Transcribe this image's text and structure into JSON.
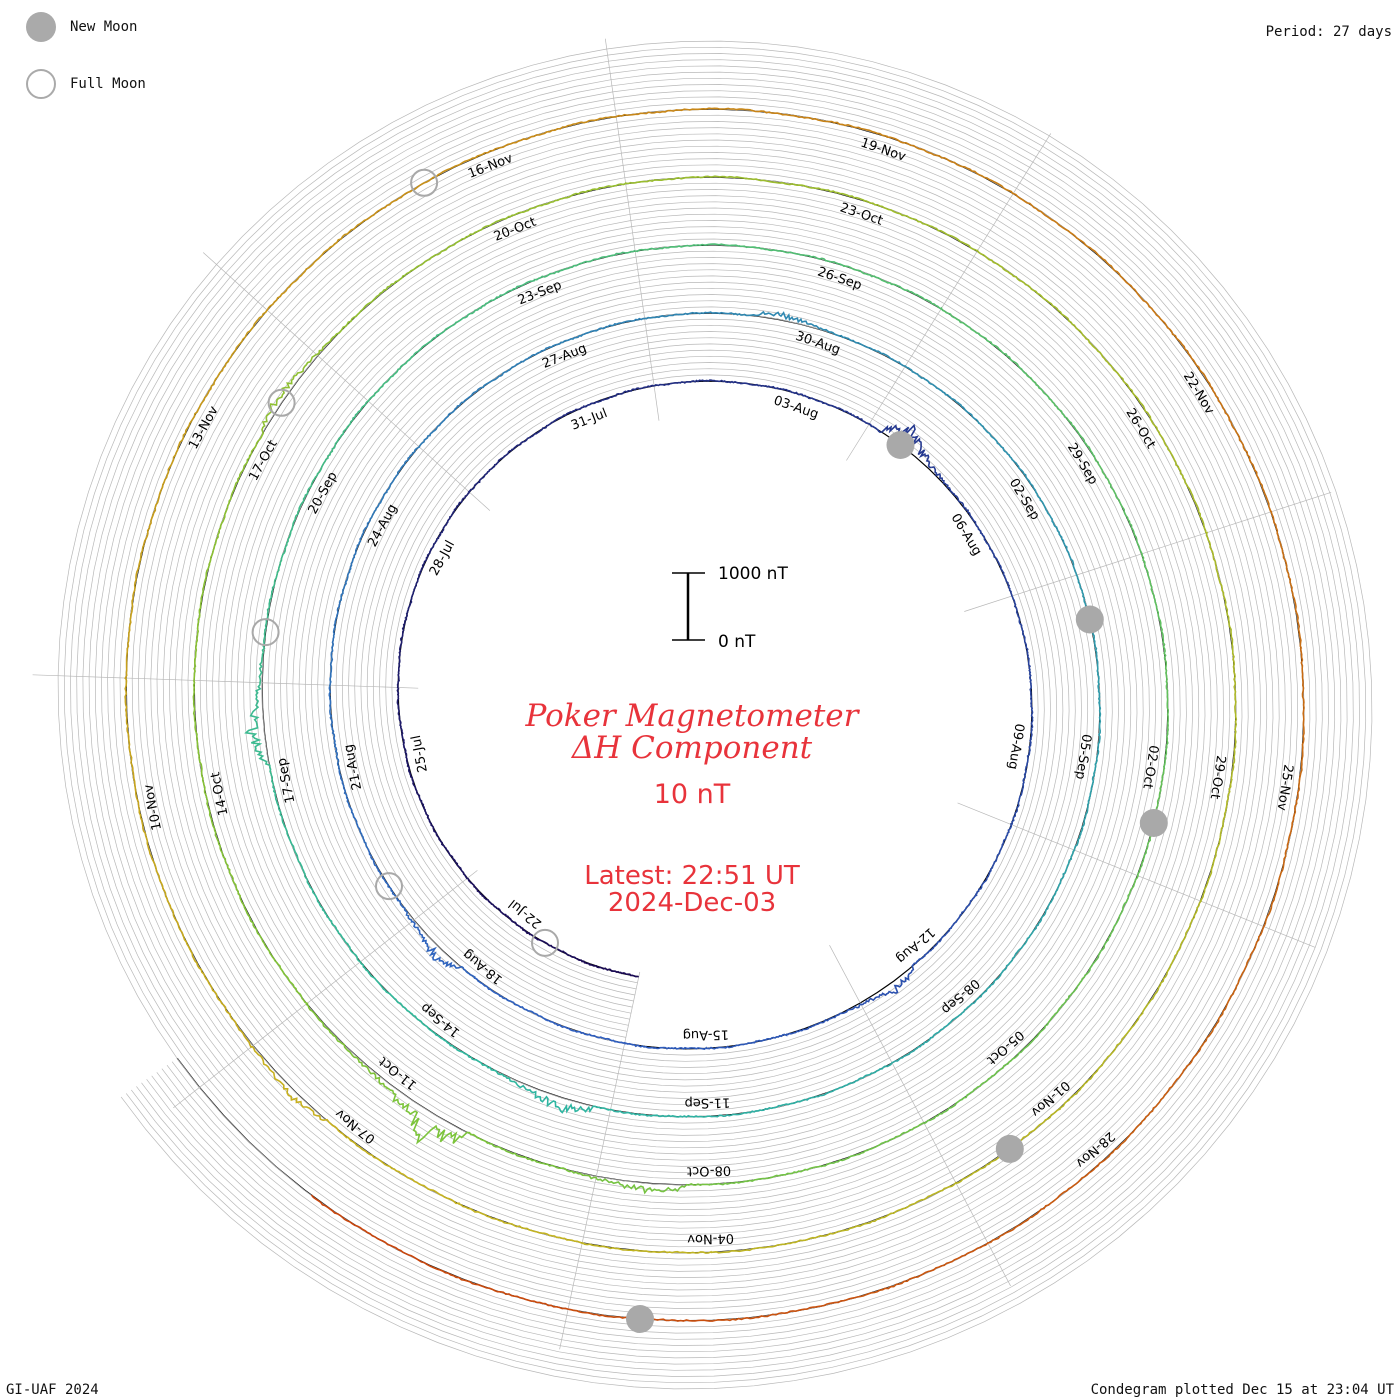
{
  "legend": {
    "new_moon": "New Moon",
    "full_moon": "Full Moon"
  },
  "period_label": "Period: 27 days",
  "footer_left": "GI-UAF 2024",
  "footer_right": "Condegram plotted Dec 15 at 23:04 UT",
  "scale_bar": {
    "top_label": "1000 nT",
    "bottom_label": "0 nT"
  },
  "title": {
    "line1": "Poker Magnetometer",
    "line2": "ΔH Component",
    "line3": "10 nT",
    "latest_line1": "Latest: 22:51 UT",
    "latest_line2": "2024-Dec-03"
  },
  "colors": {
    "title_red": "#e8333b",
    "grid": "#b8b8b8",
    "moon": "#a9a9a9",
    "trace_start": "#1a0a55",
    "trace_mid1": "#2f5fc0",
    "trace_mid2": "#2fb8a0",
    "trace_mid3": "#7cc43a",
    "trace_mid4": "#c7b21f",
    "trace_end": "#c9420c"
  },
  "chart_data": {
    "type": "line",
    "subtype": "spiral condegram",
    "period_days": 27,
    "start_date": "2024-07-20",
    "end_date": "2024-12-03",
    "day_labels": [
      "22-Jul",
      "25-Jul",
      "28-Jul",
      "31-Jul",
      "03-Aug",
      "06-Aug",
      "09-Aug",
      "12-Aug",
      "15-Aug",
      "18-Aug",
      "21-Aug",
      "24-Aug",
      "27-Aug",
      "30-Aug",
      "02-Sep",
      "05-Sep",
      "08-Sep",
      "11-Sep",
      "14-Sep",
      "17-Sep",
      "20-Sep",
      "23-Sep",
      "26-Sep",
      "29-Sep",
      "02-Oct",
      "05-Oct",
      "08-Oct",
      "11-Oct",
      "14-Oct",
      "17-Oct",
      "20-Oct",
      "23-Oct",
      "26-Oct",
      "29-Oct",
      "01-Nov",
      "04-Nov",
      "07-Nov",
      "10-Nov",
      "13-Nov",
      "16-Nov",
      "19-Nov",
      "22-Nov",
      "25-Nov",
      "28-Nov"
    ],
    "new_moons": [
      "2024-08-04",
      "2024-09-03",
      "2024-10-02",
      "2024-11-01",
      "2024-12-01"
    ],
    "full_moons": [
      "2024-07-21",
      "2024-08-19",
      "2024-09-18",
      "2024-10-17",
      "2024-11-15"
    ],
    "storm_events": [
      {
        "date": "2024-08-04",
        "value": -600
      },
      {
        "date": "2024-08-12",
        "value": -300
      },
      {
        "date": "2024-08-18",
        "value": -350
      },
      {
        "date": "2024-08-29",
        "value": -200
      },
      {
        "date": "2024-09-12",
        "value": -400
      },
      {
        "date": "2024-09-17",
        "value": -450
      },
      {
        "date": "2024-10-08",
        "value": -300
      },
      {
        "date": "2024-10-10",
        "value": -800
      },
      {
        "date": "2024-10-17",
        "value": -250
      },
      {
        "date": "2024-11-07",
        "value": -200
      }
    ],
    "ylabel": "ΔH (nT)"
  }
}
